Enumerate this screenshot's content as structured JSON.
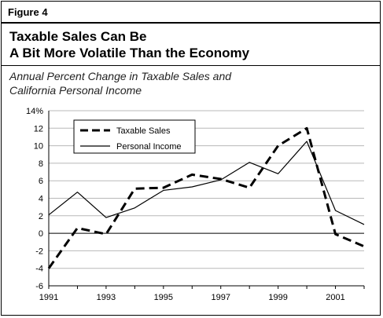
{
  "figure_label": "Figure 4",
  "title_line1": "Taxable Sales Can Be",
  "title_line2": "A Bit More Volatile Than the Economy",
  "subtitle_line1": "Annual Percent Change in Taxable Sales and",
  "subtitle_line2": "California Personal Income",
  "chart_data": {
    "type": "line",
    "x": [
      1991,
      1992,
      1993,
      1994,
      1995,
      1996,
      1997,
      1998,
      1999,
      2000,
      2001,
      2002
    ],
    "x_tick_labels": [
      "1991",
      "1993",
      "1995",
      "1997",
      "1999",
      "2001"
    ],
    "y_tick_labels": [
      "14%",
      "12",
      "10",
      "8",
      "6",
      "4",
      "2",
      "0",
      "-2",
      "-4",
      "-6"
    ],
    "ylim": [
      -6,
      14
    ],
    "xlim": [
      1991,
      2002
    ],
    "grid": "horizontal",
    "legend_position": "top-left",
    "series": [
      {
        "name": "Taxable Sales",
        "style": "dashed",
        "color": "#000000",
        "values": [
          -4.0,
          0.6,
          -0.1,
          5.1,
          5.2,
          6.7,
          6.2,
          5.2,
          10.0,
          12.0,
          -0.1,
          -1.5
        ]
      },
      {
        "name": "Personal Income",
        "style": "solid",
        "color": "#000000",
        "values": [
          2.1,
          4.7,
          1.8,
          2.9,
          4.9,
          5.3,
          6.1,
          8.1,
          6.8,
          10.5,
          2.6,
          1.0
        ]
      }
    ]
  }
}
